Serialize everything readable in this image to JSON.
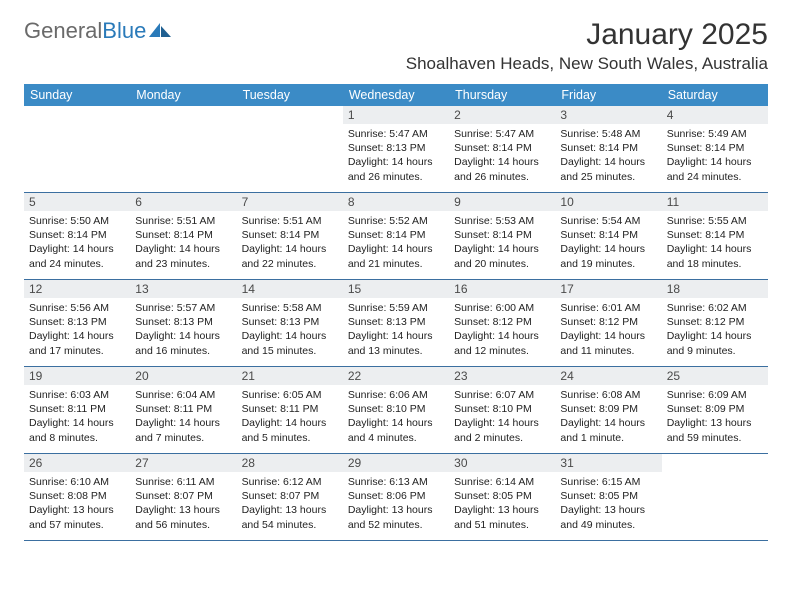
{
  "brand": {
    "part1": "General",
    "part2": "Blue"
  },
  "title": "January 2025",
  "location": "Shoalhaven Heads, New South Wales, Australia",
  "colors": {
    "header_bg": "#3b8bc6",
    "header_text": "#ffffff",
    "num_bg": "#eceef0",
    "num_text": "#4a4a4a",
    "row_border": "#3b6fa0",
    "body_text": "#222222",
    "brand_gray": "#6a6a6a",
    "brand_blue": "#2a7ab9"
  },
  "day_names": [
    "Sunday",
    "Monday",
    "Tuesday",
    "Wednesday",
    "Thursday",
    "Friday",
    "Saturday"
  ],
  "weeks": [
    [
      {
        "blank": true
      },
      {
        "blank": true
      },
      {
        "blank": true
      },
      {
        "day": "1",
        "sunrise": "Sunrise: 5:47 AM",
        "sunset": "Sunset: 8:13 PM",
        "dl1": "Daylight: 14 hours",
        "dl2": "and 26 minutes."
      },
      {
        "day": "2",
        "sunrise": "Sunrise: 5:47 AM",
        "sunset": "Sunset: 8:14 PM",
        "dl1": "Daylight: 14 hours",
        "dl2": "and 26 minutes."
      },
      {
        "day": "3",
        "sunrise": "Sunrise: 5:48 AM",
        "sunset": "Sunset: 8:14 PM",
        "dl1": "Daylight: 14 hours",
        "dl2": "and 25 minutes."
      },
      {
        "day": "4",
        "sunrise": "Sunrise: 5:49 AM",
        "sunset": "Sunset: 8:14 PM",
        "dl1": "Daylight: 14 hours",
        "dl2": "and 24 minutes."
      }
    ],
    [
      {
        "day": "5",
        "sunrise": "Sunrise: 5:50 AM",
        "sunset": "Sunset: 8:14 PM",
        "dl1": "Daylight: 14 hours",
        "dl2": "and 24 minutes."
      },
      {
        "day": "6",
        "sunrise": "Sunrise: 5:51 AM",
        "sunset": "Sunset: 8:14 PM",
        "dl1": "Daylight: 14 hours",
        "dl2": "and 23 minutes."
      },
      {
        "day": "7",
        "sunrise": "Sunrise: 5:51 AM",
        "sunset": "Sunset: 8:14 PM",
        "dl1": "Daylight: 14 hours",
        "dl2": "and 22 minutes."
      },
      {
        "day": "8",
        "sunrise": "Sunrise: 5:52 AM",
        "sunset": "Sunset: 8:14 PM",
        "dl1": "Daylight: 14 hours",
        "dl2": "and 21 minutes."
      },
      {
        "day": "9",
        "sunrise": "Sunrise: 5:53 AM",
        "sunset": "Sunset: 8:14 PM",
        "dl1": "Daylight: 14 hours",
        "dl2": "and 20 minutes."
      },
      {
        "day": "10",
        "sunrise": "Sunrise: 5:54 AM",
        "sunset": "Sunset: 8:14 PM",
        "dl1": "Daylight: 14 hours",
        "dl2": "and 19 minutes."
      },
      {
        "day": "11",
        "sunrise": "Sunrise: 5:55 AM",
        "sunset": "Sunset: 8:14 PM",
        "dl1": "Daylight: 14 hours",
        "dl2": "and 18 minutes."
      }
    ],
    [
      {
        "day": "12",
        "sunrise": "Sunrise: 5:56 AM",
        "sunset": "Sunset: 8:13 PM",
        "dl1": "Daylight: 14 hours",
        "dl2": "and 17 minutes."
      },
      {
        "day": "13",
        "sunrise": "Sunrise: 5:57 AM",
        "sunset": "Sunset: 8:13 PM",
        "dl1": "Daylight: 14 hours",
        "dl2": "and 16 minutes."
      },
      {
        "day": "14",
        "sunrise": "Sunrise: 5:58 AM",
        "sunset": "Sunset: 8:13 PM",
        "dl1": "Daylight: 14 hours",
        "dl2": "and 15 minutes."
      },
      {
        "day": "15",
        "sunrise": "Sunrise: 5:59 AM",
        "sunset": "Sunset: 8:13 PM",
        "dl1": "Daylight: 14 hours",
        "dl2": "and 13 minutes."
      },
      {
        "day": "16",
        "sunrise": "Sunrise: 6:00 AM",
        "sunset": "Sunset: 8:12 PM",
        "dl1": "Daylight: 14 hours",
        "dl2": "and 12 minutes."
      },
      {
        "day": "17",
        "sunrise": "Sunrise: 6:01 AM",
        "sunset": "Sunset: 8:12 PM",
        "dl1": "Daylight: 14 hours",
        "dl2": "and 11 minutes."
      },
      {
        "day": "18",
        "sunrise": "Sunrise: 6:02 AM",
        "sunset": "Sunset: 8:12 PM",
        "dl1": "Daylight: 14 hours",
        "dl2": "and 9 minutes."
      }
    ],
    [
      {
        "day": "19",
        "sunrise": "Sunrise: 6:03 AM",
        "sunset": "Sunset: 8:11 PM",
        "dl1": "Daylight: 14 hours",
        "dl2": "and 8 minutes."
      },
      {
        "day": "20",
        "sunrise": "Sunrise: 6:04 AM",
        "sunset": "Sunset: 8:11 PM",
        "dl1": "Daylight: 14 hours",
        "dl2": "and 7 minutes."
      },
      {
        "day": "21",
        "sunrise": "Sunrise: 6:05 AM",
        "sunset": "Sunset: 8:11 PM",
        "dl1": "Daylight: 14 hours",
        "dl2": "and 5 minutes."
      },
      {
        "day": "22",
        "sunrise": "Sunrise: 6:06 AM",
        "sunset": "Sunset: 8:10 PM",
        "dl1": "Daylight: 14 hours",
        "dl2": "and 4 minutes."
      },
      {
        "day": "23",
        "sunrise": "Sunrise: 6:07 AM",
        "sunset": "Sunset: 8:10 PM",
        "dl1": "Daylight: 14 hours",
        "dl2": "and 2 minutes."
      },
      {
        "day": "24",
        "sunrise": "Sunrise: 6:08 AM",
        "sunset": "Sunset: 8:09 PM",
        "dl1": "Daylight: 14 hours",
        "dl2": "and 1 minute."
      },
      {
        "day": "25",
        "sunrise": "Sunrise: 6:09 AM",
        "sunset": "Sunset: 8:09 PM",
        "dl1": "Daylight: 13 hours",
        "dl2": "and 59 minutes."
      }
    ],
    [
      {
        "day": "26",
        "sunrise": "Sunrise: 6:10 AM",
        "sunset": "Sunset: 8:08 PM",
        "dl1": "Daylight: 13 hours",
        "dl2": "and 57 minutes."
      },
      {
        "day": "27",
        "sunrise": "Sunrise: 6:11 AM",
        "sunset": "Sunset: 8:07 PM",
        "dl1": "Daylight: 13 hours",
        "dl2": "and 56 minutes."
      },
      {
        "day": "28",
        "sunrise": "Sunrise: 6:12 AM",
        "sunset": "Sunset: 8:07 PM",
        "dl1": "Daylight: 13 hours",
        "dl2": "and 54 minutes."
      },
      {
        "day": "29",
        "sunrise": "Sunrise: 6:13 AM",
        "sunset": "Sunset: 8:06 PM",
        "dl1": "Daylight: 13 hours",
        "dl2": "and 52 minutes."
      },
      {
        "day": "30",
        "sunrise": "Sunrise: 6:14 AM",
        "sunset": "Sunset: 8:05 PM",
        "dl1": "Daylight: 13 hours",
        "dl2": "and 51 minutes."
      },
      {
        "day": "31",
        "sunrise": "Sunrise: 6:15 AM",
        "sunset": "Sunset: 8:05 PM",
        "dl1": "Daylight: 13 hours",
        "dl2": "and 49 minutes."
      },
      {
        "blank": true
      }
    ]
  ]
}
